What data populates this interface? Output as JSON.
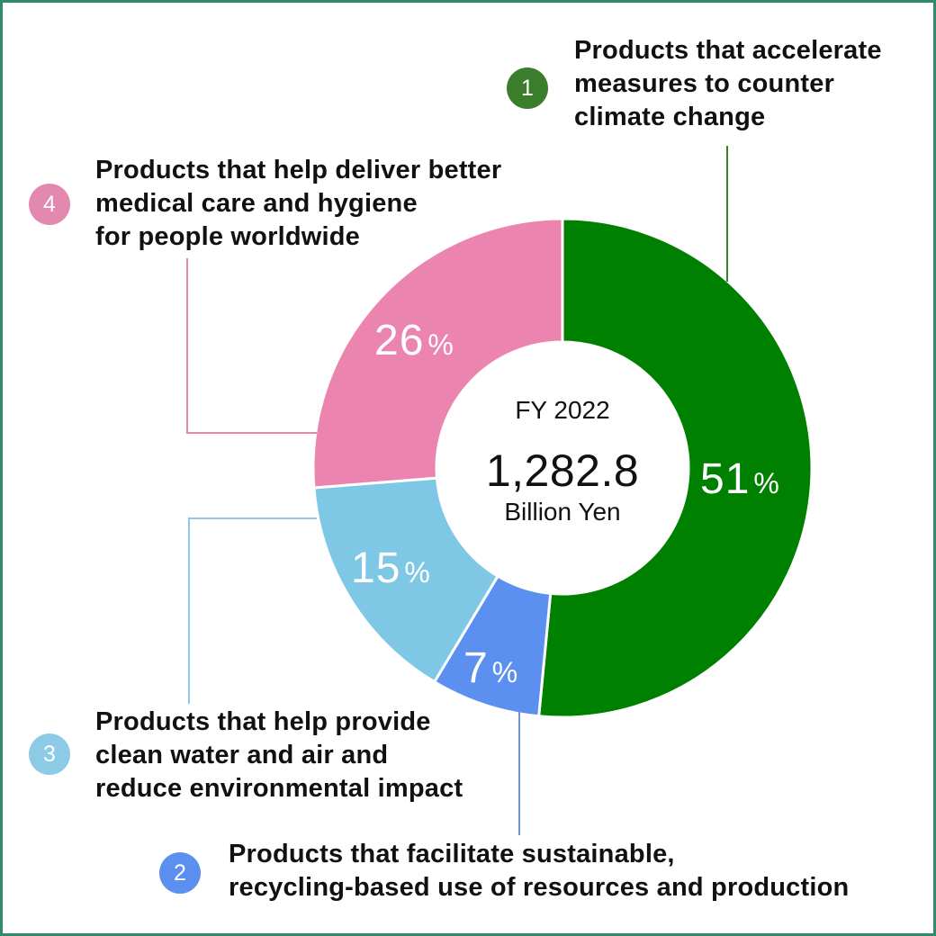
{
  "chart_data": {
    "type": "pie",
    "variant": "donut",
    "title": "FY 2022",
    "center_total": "1,282.8",
    "center_unit": "Billion Yen",
    "categories": [
      "Products that accelerate measures to counter climate change",
      "Products that facilitate sustainable, recycling-based use of resources and production",
      "Products that help provide clean water and air and reduce environmental impact",
      "Products that help deliver better medical care and hygiene for people worldwide"
    ],
    "values": [
      51,
      7,
      15,
      26
    ],
    "unit": "%",
    "colors": [
      "#008000",
      "#5b8ff0",
      "#7ec8e6",
      "#ec84b0"
    ],
    "legend_position": "callouts around donut"
  },
  "center": {
    "fy": "FY 2022",
    "total": "1,282.8",
    "unit": "Billion Yen"
  },
  "segments": [
    {
      "num": "1",
      "pct": "51",
      "unit": "%",
      "color": "#008000",
      "badge_color": "#3a7d2a",
      "label": "Products that accelerate\nmeasures to counter\nclimate change"
    },
    {
      "num": "2",
      "pct": "7",
      "unit": "%",
      "color": "#5b8ff0",
      "badge_color": "#5b8ff0",
      "label": "Products that facilitate sustainable,\nrecycling-based use of resources and production"
    },
    {
      "num": "3",
      "pct": "15",
      "unit": "%",
      "color": "#7ec8e6",
      "badge_color": "#8ccbe6",
      "label": "Products that help provide\nclean water and air and\nreduce environmental impact"
    },
    {
      "num": "4",
      "pct": "26",
      "unit": "%",
      "color": "#ec84b0",
      "badge_color": "#e389b0",
      "label": "Products that help deliver better\nmedical care and hygiene\nfor people worldwide"
    }
  ],
  "frame_color": "#2e8b6e"
}
